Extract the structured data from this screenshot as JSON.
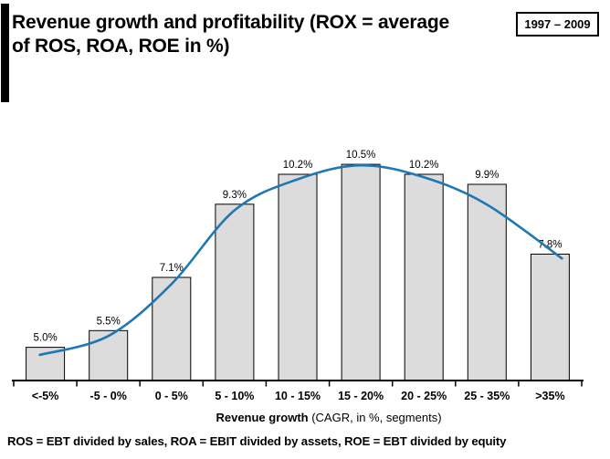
{
  "title_lines": [
    "Revenue growth and profitability (ROX = average",
    "of ROS, ROA, ROE in %)"
  ],
  "period": "1997 – 2009",
  "footnote": "ROS = EBT divided by sales, ROA = EBIT divided by assets, ROE = EBT divided by equity",
  "chart_data": {
    "type": "bar",
    "title": "Revenue growth and profitability (ROX = average of ROS, ROA, ROE in %)",
    "categories": [
      "<-5%",
      "-5 - 0%",
      "0 - 5%",
      "5 - 10%",
      "10 - 15%",
      "15 - 20%",
      "20 - 25%",
      "25 - 35%",
      ">35%"
    ],
    "values": [
      5.0,
      5.5,
      7.1,
      9.3,
      10.2,
      10.5,
      10.2,
      9.9,
      7.8
    ],
    "value_labels": [
      "5.0%",
      "5.5%",
      "7.1%",
      "9.3%",
      "10.2%",
      "10.5%",
      "10.2%",
      "9.9%",
      "7.8%"
    ],
    "trend_line": {
      "name": "smoothed ROX trend curve",
      "values": [
        4.77,
        5.34,
        6.9,
        9.12,
        10.05,
        10.47,
        10.11,
        9.29,
        7.67
      ]
    },
    "xlabel": "Revenue growth",
    "xlabel_note": " (CAGR, in %, segments)",
    "ylabel": "",
    "ylim": [
      4.0,
      11.6
    ],
    "grid": false,
    "legend": false,
    "colors": {
      "bar_fill": "#dcdcdc",
      "bar_border": "#000000",
      "trend": "#1f77b4",
      "accent_bar": "#000000"
    }
  }
}
